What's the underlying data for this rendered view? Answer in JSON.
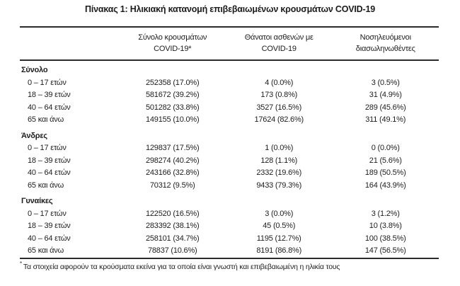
{
  "title": "Πίνακας 1: Ηλικιακή κατανομή επιβεβαιωμένων κρουσμάτων COVID-19",
  "table": {
    "headers": [
      {
        "line1": "Σύνολο κρουσμάτων",
        "line2": "COVID-19*"
      },
      {
        "line1": "Θάνατοι ασθενών με",
        "line2": "COVID-19"
      },
      {
        "line1": "Νοσηλευόμενοι",
        "line2": "διασωληνωθέντες"
      }
    ],
    "sections": [
      {
        "label": "Σύνολο",
        "rows": [
          {
            "label": "0 – 17 ετών",
            "cases": "252358 (17.0%)",
            "deaths": "4 (0.0%)",
            "intubated": "3 (0.5%)"
          },
          {
            "label": "18 – 39 ετών",
            "cases": "581672 (39.2%)",
            "deaths": "173 (0.8%)",
            "intubated": "31 (4.9%)"
          },
          {
            "label": "40 – 64 ετών",
            "cases": "501282 (33.8%)",
            "deaths": "3527 (16.5%)",
            "intubated": "289 (45.6%)"
          },
          {
            "label": "65 και άνω",
            "cases": "149155 (10.0%)",
            "deaths": "17624 (82.6%)",
            "intubated": "311 (49.1%)"
          }
        ]
      },
      {
        "label": "Άνδρες",
        "rows": [
          {
            "label": "0 – 17 ετών",
            "cases": "129837 (17.5%)",
            "deaths": "1 (0.0%)",
            "intubated": "0 (0.0%)"
          },
          {
            "label": "18 – 39 ετών",
            "cases": "298274 (40.2%)",
            "deaths": "128 (1.1%)",
            "intubated": "21 (5.6%)"
          },
          {
            "label": "40 – 64 ετών",
            "cases": "243166 (32.8%)",
            "deaths": "2332 (19.6%)",
            "intubated": "189 (50.5%)"
          },
          {
            "label": "65 και άνω",
            "cases": "70312 (9.5%)",
            "deaths": "9433 (79.3%)",
            "intubated": "164 (43.9%)"
          }
        ]
      },
      {
        "label": "Γυναίκες",
        "rows": [
          {
            "label": "0 – 17 ετών",
            "cases": "122520 (16.5%)",
            "deaths": "3 (0.0%)",
            "intubated": "3 (1.2%)"
          },
          {
            "label": "18 – 39 ετών",
            "cases": "283392 (38.1%)",
            "deaths": "45 (0.5%)",
            "intubated": "10 (3.8%)"
          },
          {
            "label": "40 – 64 ετών",
            "cases": "258101 (34.7%)",
            "deaths": "1195 (12.7%)",
            "intubated": "100 (38.5%)"
          },
          {
            "label": "65 και άνω",
            "cases": "78837 (10.6%)",
            "deaths": "8191 (86.8%)",
            "intubated": "147 (56.5%)"
          }
        ]
      }
    ]
  },
  "footnote": {
    "marker": "*",
    "text": "Τα στοιχεία αφορούν τα κρούσματα εκείνα για τα οποία είναι γνωστή και επιβεβαιωμένη η ηλικία τους"
  }
}
